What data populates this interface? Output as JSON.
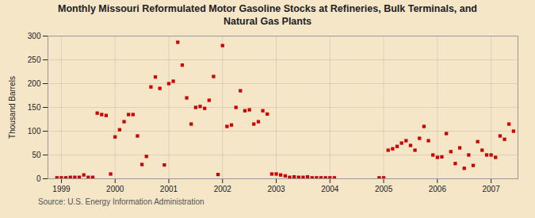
{
  "chart_data": {
    "type": "scatter",
    "title": "Monthly Missouri Reformulated Motor Gasoline Stocks at Refineries, Bulk Terminals, and\nNatural Gas Plants",
    "ylabel": "Thousand Barrels",
    "source": "Source: U.S. Energy Information Administration",
    "color": "#cc0000",
    "marker": "square",
    "grid": true,
    "x": [
      1998.917,
      1999.0,
      1999.083,
      1999.167,
      1999.25,
      1999.333,
      1999.417,
      1999.5,
      1999.583,
      1999.667,
      1999.75,
      1999.833,
      1999.917,
      2000.0,
      2000.083,
      2000.167,
      2000.25,
      2000.333,
      2000.417,
      2000.5,
      2000.583,
      2000.667,
      2000.75,
      2000.833,
      2000.917,
      2001.0,
      2001.083,
      2001.167,
      2001.25,
      2001.333,
      2001.417,
      2001.5,
      2001.583,
      2001.667,
      2001.75,
      2001.833,
      2001.917,
      2002.0,
      2002.083,
      2002.167,
      2002.25,
      2002.333,
      2002.417,
      2002.5,
      2002.583,
      2002.667,
      2002.75,
      2002.833,
      2002.917,
      2003.0,
      2003.083,
      2003.167,
      2003.25,
      2003.333,
      2003.417,
      2003.5,
      2003.583,
      2003.667,
      2003.75,
      2003.833,
      2003.917,
      2004.0,
      2004.083,
      2004.917,
      2005.0,
      2005.083,
      2005.167,
      2005.25,
      2005.333,
      2005.417,
      2005.5,
      2005.583,
      2005.667,
      2005.75,
      2005.833,
      2005.917,
      2006.0,
      2006.083,
      2006.167,
      2006.25,
      2006.333,
      2006.417,
      2006.5,
      2006.583,
      2006.667,
      2006.75,
      2006.833,
      2006.917,
      2007.0,
      2007.083,
      2007.167,
      2007.25,
      2007.333,
      2007.417
    ],
    "values": [
      2,
      2,
      2,
      3,
      3,
      3,
      8,
      3,
      3,
      138,
      135,
      133,
      10,
      88,
      103,
      120,
      135,
      135,
      90,
      30,
      47,
      193,
      214,
      190,
      29,
      200,
      205,
      287,
      239,
      170,
      115,
      150,
      152,
      148,
      165,
      215,
      9,
      280,
      110,
      113,
      150,
      185,
      143,
      145,
      115,
      120,
      143,
      136,
      10,
      10,
      8,
      6,
      3,
      4,
      3,
      3,
      4,
      2,
      2,
      2,
      2,
      2,
      2,
      2,
      2,
      60,
      63,
      68,
      75,
      80,
      70,
      60,
      85,
      110,
      80,
      50,
      45,
      46,
      95,
      57,
      32,
      65,
      22,
      50,
      28,
      78,
      60,
      50,
      50,
      45,
      90,
      83,
      115,
      100
    ],
    "xlim": [
      1998.75,
      2007.5
    ],
    "xticks": [
      1999,
      2000,
      2001,
      2002,
      2003,
      2004,
      2005,
      2006,
      2007
    ],
    "ylim": [
      0,
      300
    ],
    "yticks": [
      0,
      50,
      100,
      150,
      200,
      250,
      300
    ]
  }
}
